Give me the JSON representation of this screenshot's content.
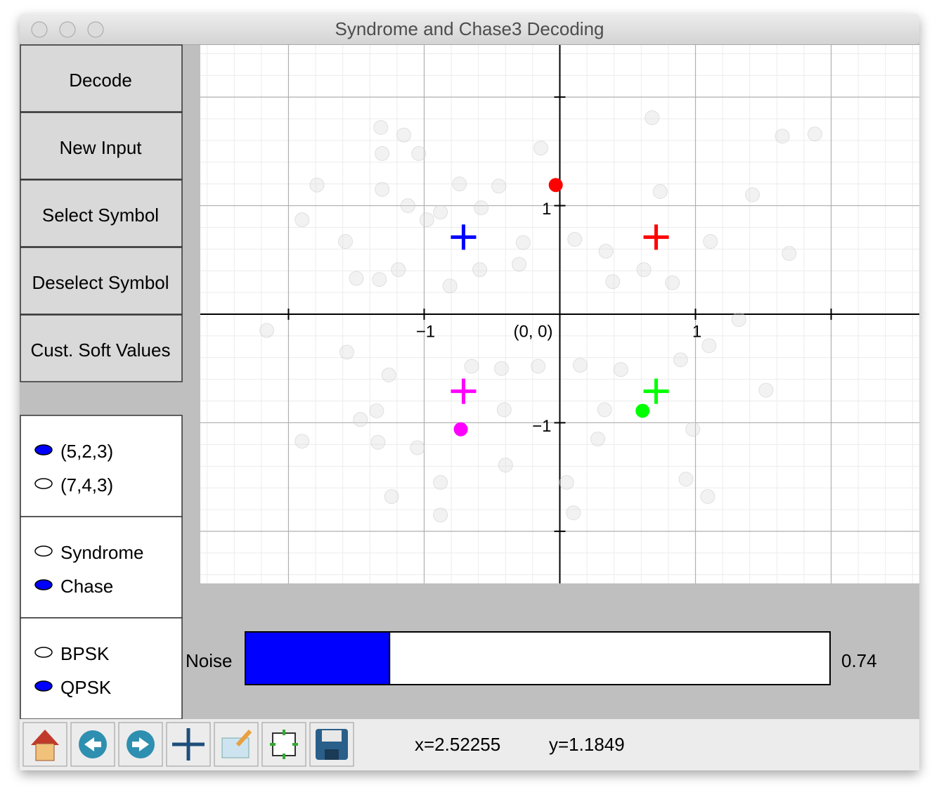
{
  "window": {
    "title": "Syndrome and Chase3 Decoding"
  },
  "buttons": [
    "Decode",
    "New Input",
    "Select Symbol",
    "Deselect Symbol",
    "Cust. Soft Values"
  ],
  "radio_groups": [
    {
      "options": [
        "(5,2,3)",
        "(7,4,3)"
      ],
      "selected": 0
    },
    {
      "options": [
        "Syndrome",
        "Chase"
      ],
      "selected": 1
    },
    {
      "options": [
        "BPSK",
        "QPSK"
      ],
      "selected": 1
    }
  ],
  "chart_data": {
    "type": "scatter",
    "xlim": [
      -2.65,
      2.65
    ],
    "ylim": [
      -2.48,
      2.48
    ],
    "xticks": [
      {
        "value": -1,
        "label": "−1"
      },
      {
        "value": 1,
        "label": "1"
      }
    ],
    "yticks": [
      {
        "value": 1,
        "label": "1"
      },
      {
        "value": -1,
        "label": "−1"
      }
    ],
    "origin_label": "(0, 0)",
    "xgrid": [
      -2,
      -1,
      0,
      1,
      2
    ],
    "ygrid": [
      -2,
      -1,
      0,
      1,
      2
    ],
    "minor_grid_step": 0.2,
    "grid": true,
    "series": [
      {
        "marker": "circle",
        "color": "#d9d9d9",
        "x": [
          -1.32,
          -1.15,
          -1.31,
          -1.04,
          -0.14,
          0.68,
          1.64,
          1.88,
          -1.79,
          -1.31,
          -0.74,
          -0.45,
          -1.12,
          -0.88,
          -0.58,
          0.74,
          1.42,
          -1.9,
          -0.98,
          -1.58,
          -0.27,
          0.11,
          0.34,
          1.11,
          1.69,
          -1.19,
          -1.5,
          -1.33,
          -0.81,
          -0.3,
          0.39,
          0.83,
          0.62,
          -0.59,
          -2.16,
          -1.57,
          -1.26,
          -0.65,
          -0.43,
          -0.16,
          0.15,
          0.45,
          0.89,
          1.1,
          1.52,
          -1.35,
          -1.47,
          -0.41,
          0.33,
          -1.9,
          -1.34,
          -1.05,
          -0.4,
          0.05,
          0.93,
          -0.88,
          -1.24,
          -0.88,
          0.1,
          1.09,
          0.98,
          0.28,
          1.32
        ],
        "values": [
          1.72,
          1.65,
          1.48,
          1.48,
          1.53,
          1.81,
          1.64,
          1.66,
          1.19,
          1.15,
          1.2,
          1.18,
          1.0,
          0.94,
          0.98,
          1.13,
          1.1,
          0.87,
          0.87,
          0.67,
          0.66,
          0.69,
          0.58,
          0.67,
          0.56,
          0.41,
          0.33,
          0.32,
          0.26,
          0.46,
          0.3,
          0.29,
          0.41,
          0.41,
          -0.15,
          -0.35,
          -0.56,
          -0.48,
          -0.5,
          -0.48,
          -0.47,
          -0.51,
          -0.42,
          -0.29,
          -0.7,
          -0.89,
          -0.97,
          -0.88,
          -0.88,
          -1.17,
          -1.18,
          -1.23,
          -1.39,
          -1.55,
          -1.52,
          -1.55,
          -1.68,
          -1.85,
          -1.83,
          -1.68,
          -1.06,
          -1.15,
          -0.05
        ]
      },
      {
        "marker": "plus",
        "colors": [
          "#ff0000",
          "#0000ff",
          "#ff00ff",
          "#00ff00"
        ],
        "x": [
          0.71,
          -0.71,
          -0.71,
          0.71
        ],
        "values": [
          0.71,
          0.71,
          -0.71,
          -0.71
        ]
      },
      {
        "marker": "circle",
        "colors": [
          "#ff0000",
          "#00ff00",
          "#ff00ff"
        ],
        "x": [
          -0.03,
          0.61,
          -0.73
        ],
        "values": [
          1.19,
          -0.89,
          -1.06
        ]
      }
    ]
  },
  "slider": {
    "label": "Noise",
    "value": 0.74,
    "min": 0,
    "max": 3,
    "color": "#0000ff"
  },
  "status": {
    "x": "x=2.52255",
    "y": "y=1.1849"
  }
}
